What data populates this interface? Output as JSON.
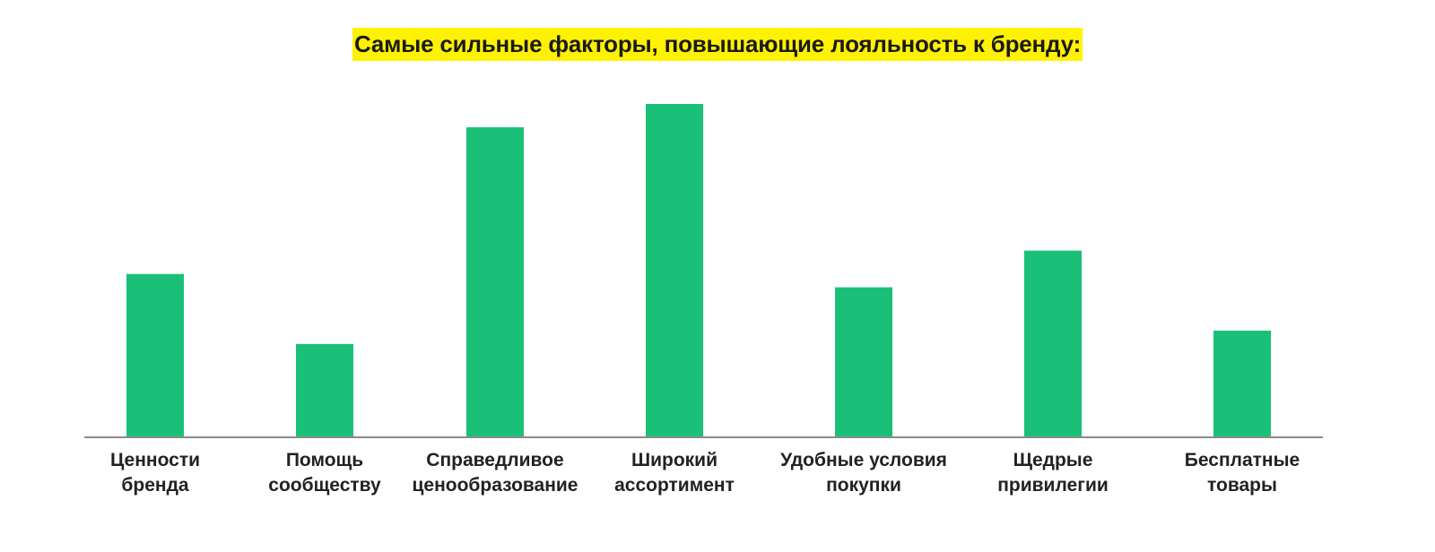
{
  "colors": {
    "bar": "#1bc078",
    "title_highlight": "#fff200",
    "axis": "#8a8a8a",
    "text": "#222222"
  },
  "chart_data": {
    "type": "bar",
    "title": "Самые сильные факторы, повышающие лояльность к бренду:",
    "xlabel": "",
    "ylabel": "",
    "categories": [
      [
        "Ценности",
        "бренда"
      ],
      [
        "Помощь",
        "сообществу"
      ],
      [
        "Справедливое",
        "ценообразование"
      ],
      [
        "Широкий",
        "ассортимент"
      ],
      [
        "Удобные условия",
        "покупки"
      ],
      [
        "Щедрые",
        "привилегии"
      ],
      [
        "Бесплатные",
        "товары"
      ]
    ],
    "values": [
      49,
      28,
      93,
      100,
      45,
      56,
      32
    ],
    "ylim": [
      0,
      100
    ],
    "grid": false,
    "legend": "none"
  }
}
